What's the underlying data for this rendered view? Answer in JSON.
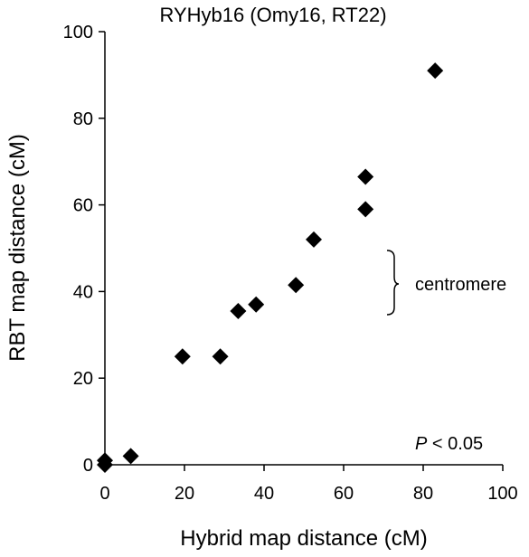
{
  "chart_data": {
    "type": "scatter",
    "title": "RYHyb16 (Omy16, RT22)",
    "xlabel": "Hybrid map distance (cM)",
    "ylabel": "RBT map distance (cM)",
    "xlim": [
      0,
      100
    ],
    "ylim": [
      0,
      100
    ],
    "x_ticks": [
      "0",
      "20",
      "40",
      "60",
      "80",
      "100"
    ],
    "y_ticks": [
      "0",
      "20",
      "40",
      "60",
      "80",
      "100"
    ],
    "grid": false,
    "marker": "diamond",
    "marker_color": "#000000",
    "points": [
      {
        "x": 0,
        "y": 0
      },
      {
        "x": 0,
        "y": 1
      },
      {
        "x": 6.5,
        "y": 2
      },
      {
        "x": 19.5,
        "y": 25
      },
      {
        "x": 29,
        "y": 25
      },
      {
        "x": 33.5,
        "y": 35.5
      },
      {
        "x": 38,
        "y": 37
      },
      {
        "x": 48,
        "y": 41.5
      },
      {
        "x": 52.5,
        "y": 52
      },
      {
        "x": 65.5,
        "y": 59
      },
      {
        "x": 65.5,
        "y": 66.5
      },
      {
        "x": 83,
        "y": 91
      }
    ],
    "annotations": {
      "centromere": {
        "label": "centromere",
        "y_range": [
          35,
          49.5
        ],
        "x": 71.5
      },
      "p_value": {
        "italic": "P",
        "rest": " < 0.05"
      }
    }
  }
}
